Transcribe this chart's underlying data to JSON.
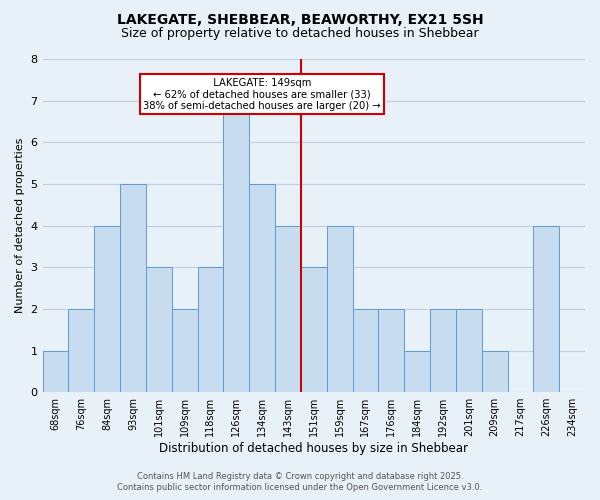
{
  "title": "LAKEGATE, SHEBBEAR, BEAWORTHY, EX21 5SH",
  "subtitle": "Size of property relative to detached houses in Shebbear",
  "xlabel": "Distribution of detached houses by size in Shebbear",
  "ylabel": "Number of detached properties",
  "bin_labels": [
    "68sqm",
    "76sqm",
    "84sqm",
    "93sqm",
    "101sqm",
    "109sqm",
    "118sqm",
    "126sqm",
    "134sqm",
    "143sqm",
    "151sqm",
    "159sqm",
    "167sqm",
    "176sqm",
    "184sqm",
    "192sqm",
    "201sqm",
    "209sqm",
    "217sqm",
    "226sqm",
    "234sqm"
  ],
  "bar_heights": [
    1,
    2,
    4,
    5,
    3,
    2,
    3,
    7,
    5,
    4,
    3,
    4,
    2,
    2,
    1,
    2,
    2,
    1,
    0,
    4,
    0
  ],
  "bar_color": "#c8dcf0",
  "bar_edgecolor": "#5b9bd5",
  "vline_color": "#cc0000",
  "annotation_title": "LAKEGATE: 149sqm",
  "annotation_line1": "← 62% of detached houses are smaller (33)",
  "annotation_line2": "38% of semi-detached houses are larger (20) →",
  "annotation_box_color": "#ffffff",
  "annotation_box_edgecolor": "#cc0000",
  "ylim": [
    0,
    8
  ],
  "yticks": [
    0,
    1,
    2,
    3,
    4,
    5,
    6,
    7,
    8
  ],
  "grid_color": "#c0d0e0",
  "background_color": "#e8f0f8",
  "footer_line1": "Contains HM Land Registry data © Crown copyright and database right 2025.",
  "footer_line2": "Contains public sector information licensed under the Open Government Licence v3.0.",
  "title_fontsize": 10,
  "subtitle_fontsize": 9,
  "xlabel_fontsize": 8.5,
  "ylabel_fontsize": 8,
  "tick_fontsize": 7,
  "footer_fontsize": 6,
  "vline_bin_index": 10
}
